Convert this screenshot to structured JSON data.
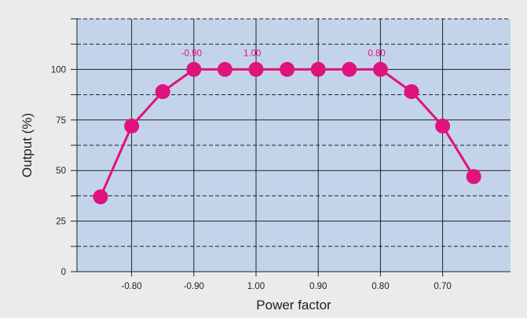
{
  "chart_data": {
    "type": "line",
    "title": "",
    "xlabel": "Power factor",
    "ylabel": "Output (%)",
    "ylim": [
      0,
      125
    ],
    "yticks": [
      0,
      25,
      50,
      75,
      100
    ],
    "categories": [
      "",
      "-0.80",
      "",
      "-0.90",
      "",
      "1.00",
      "",
      "0.90",
      "",
      "0.80",
      "",
      "0.70",
      ""
    ],
    "series": [
      {
        "values": [
          37,
          72,
          89,
          100,
          100,
          100,
          100,
          100,
          100,
          100,
          89,
          72,
          47
        ]
      }
    ],
    "annotations": [
      {
        "index": 3,
        "text": "-0.90"
      },
      {
        "index": 5,
        "text": "1.00"
      },
      {
        "index": 9,
        "text": "0.80"
      }
    ],
    "grid": true,
    "colors": {
      "plot_background": "#c3d4ea",
      "series": "#e0127d",
      "grid": "#222222",
      "page_background": "#ebebeb"
    }
  }
}
